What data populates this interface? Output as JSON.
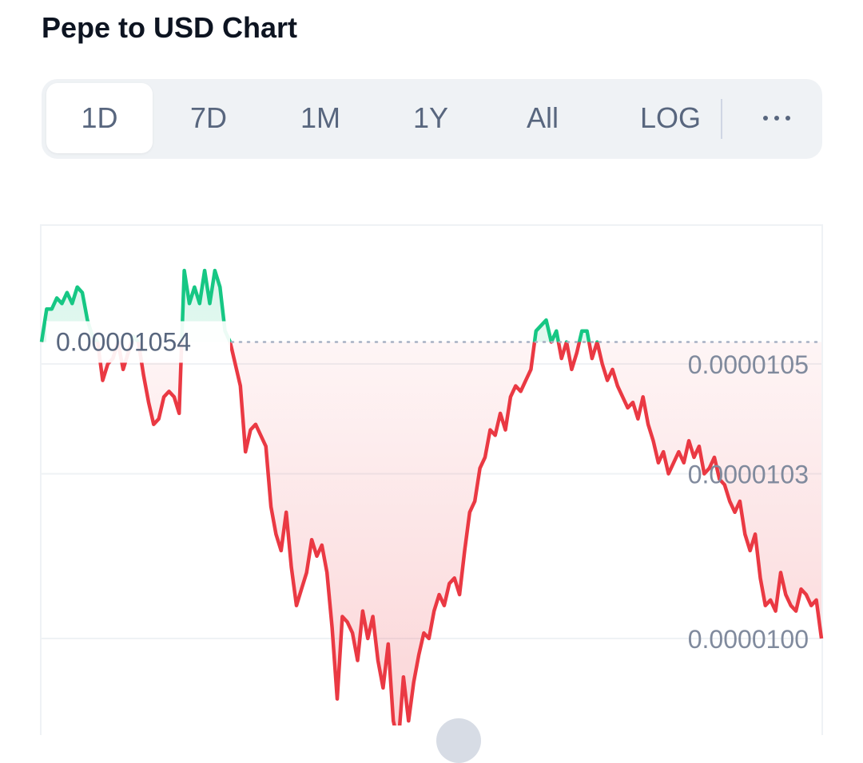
{
  "header": {
    "title": "Pepe to USD Chart"
  },
  "tabs": [
    {
      "label": "1D",
      "active": true
    },
    {
      "label": "7D",
      "active": false
    },
    {
      "label": "1M",
      "active": false
    },
    {
      "label": "1Y",
      "active": false
    },
    {
      "label": "All",
      "active": false
    },
    {
      "label": "LOG",
      "active": false
    }
  ],
  "more_icon": "more-horizontal-icon",
  "colors": {
    "up": "#16c784",
    "down": "#ea3943",
    "grid": "#eff2f5",
    "reference": "#a6b0c3"
  },
  "chart_data": {
    "type": "line",
    "reference_value": 1.054e-05,
    "reference_label": "0.00001054",
    "y_ticks": [
      {
        "value": 1.05e-05,
        "label": "0.0000105"
      },
      {
        "value": 1.03e-05,
        "label": "0.0000103"
      },
      {
        "value": 1e-05,
        "label": "0.0000100"
      }
    ],
    "ylim": [
      9.75e-06,
      1.11e-05
    ],
    "y_axis_side": "right",
    "grid": true,
    "values": [
      1.054e-05,
      1.06e-05,
      1.06e-05,
      1.062e-05,
      1.061e-05,
      1.063e-05,
      1.061e-05,
      1.064e-05,
      1.063e-05,
      1.058e-05,
      1.055e-05,
      1.054e-05,
      1.047e-05,
      1.05e-05,
      1.051e-05,
      1.054e-05,
      1.049e-05,
      1.052e-05,
      1.055e-05,
      1.054e-05,
      1.048e-05,
      1.043e-05,
      1.039e-05,
      1.04e-05,
      1.044e-05,
      1.045e-05,
      1.044e-05,
      1.041e-05,
      1.067e-05,
      1.061e-05,
      1.064e-05,
      1.061e-05,
      1.067e-05,
      1.061e-05,
      1.067e-05,
      1.064e-05,
      1.056e-05,
      1.054e-05,
      1.05e-05,
      1.046e-05,
      1.034e-05,
      1.038e-05,
      1.039e-05,
      1.037e-05,
      1.035e-05,
      1.024e-05,
      1.019e-05,
      1.016e-05,
      1.023e-05,
      1.013e-05,
      1.006e-05,
      1.009e-05,
      1.012e-05,
      1.018e-05,
      1.015e-05,
      1.017e-05,
      1.012e-05,
      1.002e-05,
      9.89e-06,
      1.004e-05,
      1.003e-05,
      1.001e-05,
      9.96e-06,
      1.005e-05,
      1e-05,
      1.004e-05,
      9.96e-06,
      9.91e-06,
      9.99e-06,
      9.85e-06,
      9.81e-06,
      9.93e-06,
      9.85e-06,
      9.92e-06,
      9.97e-06,
      1.001e-05,
      1e-05,
      1.005e-05,
      1.008e-05,
      1.006e-05,
      1.01e-05,
      1.011e-05,
      1.008e-05,
      1.016e-05,
      1.023e-05,
      1.025e-05,
      1.031e-05,
      1.033e-05,
      1.038e-05,
      1.037e-05,
      1.041e-05,
      1.038e-05,
      1.044e-05,
      1.046e-05,
      1.045e-05,
      1.047e-05,
      1.049e-05,
      1.056e-05,
      1.057e-05,
      1.058e-05,
      1.054e-05,
      1.056e-05,
      1.051e-05,
      1.054e-05,
      1.049e-05,
      1.052e-05,
      1.056e-05,
      1.056e-05,
      1.051e-05,
      1.054e-05,
      1.05e-05,
      1.047e-05,
      1.049e-05,
      1.046e-05,
      1.044e-05,
      1.042e-05,
      1.043e-05,
      1.04e-05,
      1.044e-05,
      1.039e-05,
      1.036e-05,
      1.032e-05,
      1.034e-05,
      1.03e-05,
      1.032e-05,
      1.034e-05,
      1.032e-05,
      1.036e-05,
      1.033e-05,
      1.035e-05,
      1.03e-05,
      1.031e-05,
      1.033e-05,
      1.029e-05,
      1.028e-05,
      1.025e-05,
      1.023e-05,
      1.025e-05,
      1.019e-05,
      1.016e-05,
      1.019e-05,
      1.011e-05,
      1.006e-05,
      1.007e-05,
      1.005e-05,
      1.012e-05,
      1.008e-05,
      1.006e-05,
      1.005e-05,
      1.009e-05,
      1.008e-05,
      1.006e-05,
      1.007e-05,
      1e-05
    ]
  }
}
